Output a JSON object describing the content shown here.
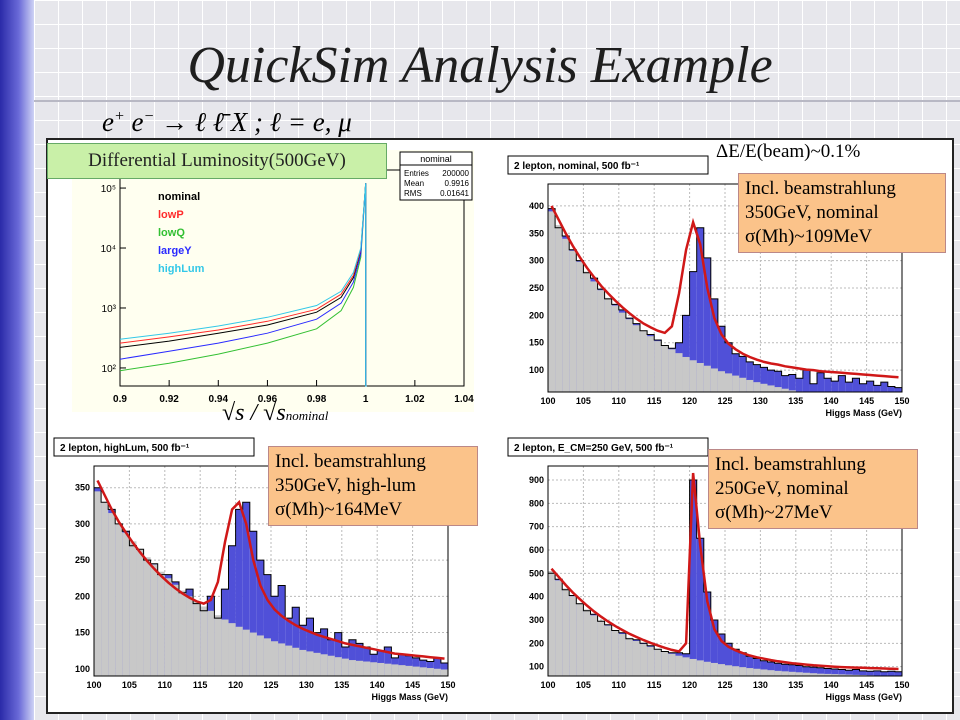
{
  "slide": {
    "title": "QuickSim Analysis Example",
    "formula": "e⁺e⁻ → ℓ ℓ̄ X ; ℓ = e, μ",
    "formula_parts": {
      "lhs": "e",
      "lhs_sup": "+",
      "mid": "e",
      "mid_sup": "−",
      "arrow": "→",
      "rhs": "ℓ ℓ̄ X ;  ℓ = e, μ"
    }
  },
  "labels": {
    "lumi": "Differential Luminosity(500GeV)",
    "de": "ΔE/E(beam)~0.1%",
    "sqrt_s": "√s / √s",
    "sqrt_s_sub": "nominal",
    "tr": [
      "Incl. beamstrahlung",
      "350GeV, nominal",
      "σ(Mh)~109MeV"
    ],
    "bl": [
      "Incl. beamstrahlung",
      "350GeV, high-lum",
      "σ(Mh)~164MeV"
    ],
    "br": [
      "Incl. beamstrahlung",
      "250GeV, nominal",
      "σ(Mh)~27MeV"
    ]
  },
  "chart_data": [
    {
      "type": "line",
      "title": "nominal",
      "stats": {
        "Entries": "200000",
        "Mean": "0.9916",
        "RMS": "0.01641"
      },
      "legend": [
        "nominal",
        "lowP",
        "lowQ",
        "largeY",
        "highLum"
      ],
      "legend_colors": [
        "#000000",
        "#ff2a2a",
        "#33c033",
        "#2a2aff",
        "#33c8e8"
      ],
      "log_y": true,
      "ytick_labels": [
        "10²",
        "10³",
        "10⁴",
        "10⁵"
      ],
      "ytick_values": [
        100,
        1000,
        10000,
        100000
      ],
      "xlim": [
        0.9,
        1.04
      ],
      "ylim": [
        50,
        200000
      ],
      "xticks": [
        "0.9",
        "0.92",
        "0.94",
        "0.96",
        "0.98",
        "1",
        "1.02",
        "1.04"
      ],
      "xtick_values": [
        0.9,
        0.92,
        0.94,
        0.96,
        0.98,
        1.0,
        1.02,
        1.04
      ],
      "series": [
        {
          "name": "nominal",
          "x": [
            0.9,
            0.92,
            0.94,
            0.96,
            0.98,
            0.99,
            0.995,
            0.998,
            1.0
          ],
          "y": [
            220,
            280,
            380,
            520,
            850,
            1500,
            3200,
            9000,
            120000
          ]
        },
        {
          "name": "lowP",
          "x": [
            0.9,
            0.92,
            0.94,
            0.96,
            0.98,
            0.99,
            0.995,
            0.998,
            1.0
          ],
          "y": [
            260,
            330,
            430,
            600,
            950,
            1700,
            3500,
            9500,
            120000
          ]
        },
        {
          "name": "lowQ",
          "x": [
            0.9,
            0.92,
            0.94,
            0.96,
            0.98,
            0.99,
            0.995,
            0.998,
            1.0
          ],
          "y": [
            90,
            120,
            170,
            260,
            450,
            900,
            2200,
            7000,
            120000
          ]
        },
        {
          "name": "largeY",
          "x": [
            0.9,
            0.92,
            0.94,
            0.96,
            0.98,
            0.99,
            0.995,
            0.998,
            1.0
          ],
          "y": [
            140,
            190,
            260,
            380,
            650,
            1200,
            2700,
            8000,
            120000
          ]
        },
        {
          "name": "highLum",
          "x": [
            0.9,
            0.92,
            0.94,
            0.96,
            0.98,
            0.99,
            0.995,
            0.998,
            1.0
          ],
          "y": [
            300,
            380,
            500,
            700,
            1100,
            1900,
            3900,
            10000,
            120000
          ]
        }
      ]
    },
    {
      "type": "bar",
      "title": "2 lepton, nominal, 500 fb⁻¹",
      "xlabel": "Higgs Mass (GeV)",
      "xlim": [
        100,
        150
      ],
      "ylim": [
        60,
        440
      ],
      "xticks": [
        "100",
        "105",
        "110",
        "115",
        "120",
        "125",
        "130",
        "135",
        "140",
        "145",
        "150"
      ],
      "yticks": [
        "100",
        "150",
        "200",
        "250",
        "300",
        "350",
        "400"
      ],
      "bin_width": 1,
      "x": [
        100,
        101,
        102,
        103,
        104,
        105,
        106,
        107,
        108,
        109,
        110,
        111,
        112,
        113,
        114,
        115,
        116,
        117,
        118,
        119,
        120,
        121,
        122,
        123,
        124,
        125,
        126,
        127,
        128,
        129,
        130,
        131,
        132,
        133,
        134,
        135,
        136,
        137,
        138,
        139,
        140,
        141,
        142,
        143,
        144,
        145,
        146,
        147,
        148,
        149
      ],
      "background": [
        390,
        365,
        340,
        318,
        298,
        280,
        262,
        246,
        232,
        218,
        205,
        193,
        182,
        172,
        162,
        153,
        145,
        138,
        131,
        124,
        118,
        113,
        108,
        103,
        98,
        94,
        90,
        86,
        82,
        78,
        75,
        72,
        69,
        66,
        63,
        61,
        59,
        57,
        55,
        53,
        51,
        49,
        47,
        45,
        43,
        41,
        40,
        38,
        37,
        35
      ],
      "total": [
        395,
        360,
        345,
        320,
        300,
        278,
        268,
        248,
        230,
        220,
        210,
        195,
        185,
        172,
        165,
        155,
        145,
        140,
        150,
        200,
        280,
        360,
        305,
        230,
        180,
        150,
        130,
        125,
        115,
        110,
        105,
        100,
        98,
        90,
        92,
        85,
        100,
        75,
        95,
        85,
        80,
        90,
        78,
        85,
        75,
        80,
        72,
        78,
        70,
        68
      ],
      "fit": [
        400,
        375,
        350,
        327,
        306,
        287,
        270,
        254,
        240,
        227,
        215,
        204,
        194,
        185,
        178,
        172,
        168,
        180,
        240,
        320,
        370,
        330,
        250,
        195,
        165,
        148,
        138,
        130,
        124,
        119,
        115,
        112,
        110,
        107,
        105,
        103,
        101,
        100,
        98,
        97,
        96,
        95,
        94,
        93,
        92,
        91,
        90,
        89,
        88,
        87
      ]
    },
    {
      "type": "bar",
      "title": "2 lepton, highLum, 500 fb⁻¹",
      "xlabel": "Higgs Mass (GeV)",
      "xlim": [
        100,
        150
      ],
      "ylim": [
        90,
        380
      ],
      "xticks": [
        "100",
        "105",
        "110",
        "115",
        "120",
        "125",
        "130",
        "135",
        "140",
        "145",
        "150"
      ],
      "yticks": [
        "100",
        "150",
        "200",
        "250",
        "300",
        "350"
      ],
      "bin_width": 1,
      "x": [
        100,
        101,
        102,
        103,
        104,
        105,
        106,
        107,
        108,
        109,
        110,
        111,
        112,
        113,
        114,
        115,
        116,
        117,
        118,
        119,
        120,
        121,
        122,
        123,
        124,
        125,
        126,
        127,
        128,
        129,
        130,
        131,
        132,
        133,
        134,
        135,
        136,
        137,
        138,
        139,
        140,
        141,
        142,
        143,
        144,
        145,
        146,
        147,
        148,
        149
      ],
      "background": [
        345,
        330,
        315,
        300,
        288,
        276,
        265,
        254,
        244,
        234,
        225,
        216,
        208,
        200,
        193,
        186,
        180,
        174,
        168,
        163,
        158,
        154,
        150,
        146,
        142,
        138,
        135,
        132,
        129,
        126,
        124,
        122,
        120,
        118,
        116,
        114,
        112,
        111,
        110,
        109,
        108,
        107,
        106,
        105,
        104,
        103,
        102,
        101,
        100,
        99
      ],
      "total": [
        350,
        330,
        320,
        300,
        290,
        270,
        265,
        250,
        245,
        230,
        230,
        220,
        205,
        210,
        190,
        180,
        200,
        170,
        210,
        270,
        320,
        330,
        290,
        250,
        230,
        200,
        215,
        170,
        185,
        160,
        170,
        150,
        155,
        140,
        150,
        130,
        140,
        135,
        130,
        120,
        125,
        130,
        115,
        120,
        118,
        115,
        112,
        110,
        115,
        108
      ],
      "fit": [
        360,
        340,
        320,
        303,
        288,
        274,
        261,
        249,
        238,
        228,
        219,
        211,
        204,
        198,
        193,
        190,
        195,
        220,
        275,
        320,
        330,
        300,
        250,
        215,
        195,
        182,
        173,
        166,
        160,
        155,
        151,
        147,
        144,
        141,
        138,
        135,
        133,
        131,
        129,
        127,
        125,
        123,
        121,
        120,
        119,
        118,
        117,
        116,
        115,
        114
      ]
    },
    {
      "type": "bar",
      "title": "2 lepton, E_CM=250 GeV, 500 fb⁻¹",
      "xlabel": "Higgs Mass (GeV)",
      "xlim": [
        100,
        150
      ],
      "ylim": [
        60,
        960
      ],
      "xticks": [
        "100",
        "105",
        "110",
        "115",
        "120",
        "125",
        "130",
        "135",
        "140",
        "145",
        "150"
      ],
      "yticks": [
        "100",
        "200",
        "300",
        "400",
        "500",
        "600",
        "700",
        "800",
        "900"
      ],
      "bin_width": 1,
      "x": [
        100,
        101,
        102,
        103,
        104,
        105,
        106,
        107,
        108,
        109,
        110,
        111,
        112,
        113,
        114,
        115,
        116,
        117,
        118,
        119,
        120,
        121,
        122,
        123,
        124,
        125,
        126,
        127,
        128,
        129,
        130,
        131,
        132,
        133,
        134,
        135,
        136,
        137,
        138,
        139,
        140,
        141,
        142,
        143,
        144,
        145,
        146,
        147,
        148,
        149
      ],
      "background": [
        510,
        470,
        435,
        402,
        372,
        345,
        320,
        297,
        276,
        257,
        240,
        224,
        210,
        197,
        185,
        174,
        164,
        155,
        147,
        140,
        133,
        127,
        121,
        116,
        111,
        106,
        102,
        98,
        94,
        91,
        88,
        85,
        82,
        80,
        78,
        76,
        74,
        72,
        70,
        69,
        68,
        67,
        66,
        65,
        64,
        63,
        62,
        61,
        60,
        60
      ],
      "total": [
        500,
        475,
        430,
        405,
        370,
        340,
        325,
        295,
        280,
        255,
        245,
        220,
        215,
        200,
        190,
        175,
        165,
        160,
        160,
        155,
        900,
        650,
        420,
        300,
        240,
        200,
        175,
        160,
        145,
        135,
        125,
        120,
        115,
        110,
        108,
        105,
        100,
        98,
        95,
        92,
        90,
        88,
        85,
        88,
        82,
        80,
        82,
        78,
        80,
        78
      ],
      "fit": [
        520,
        485,
        450,
        418,
        389,
        362,
        337,
        314,
        293,
        274,
        257,
        241,
        227,
        214,
        202,
        191,
        181,
        172,
        165,
        200,
        930,
        620,
        380,
        260,
        210,
        185,
        170,
        158,
        148,
        140,
        134,
        128,
        123,
        119,
        115,
        112,
        109,
        106,
        104,
        102,
        100,
        98,
        97,
        96,
        95,
        94,
        93,
        92,
        91,
        90
      ]
    }
  ]
}
